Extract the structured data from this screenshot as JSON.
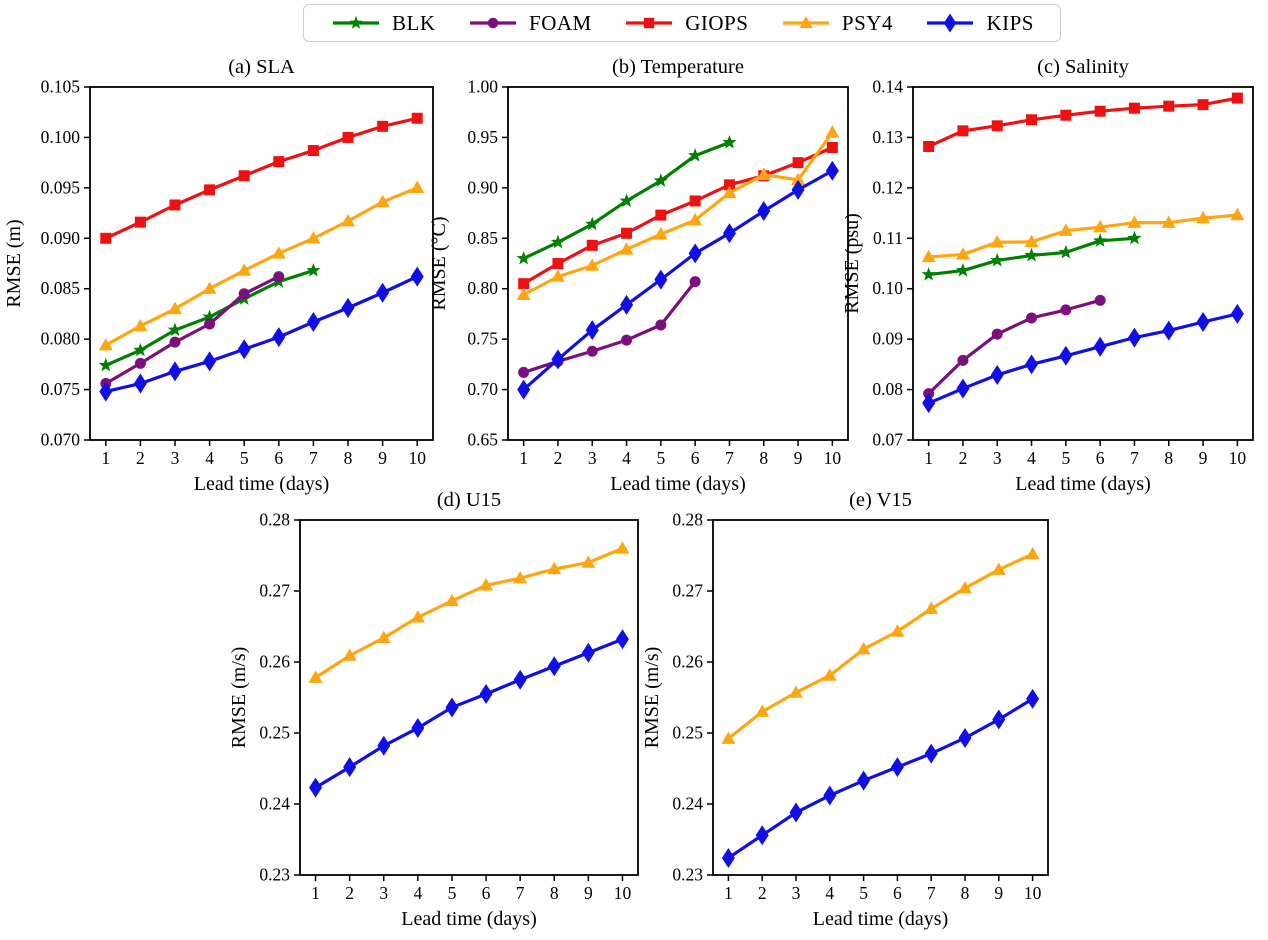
{
  "figure": {
    "legend": {
      "position": "top-center",
      "items": [
        {
          "label": "BLK",
          "color": "#008000",
          "marker": "star-icon"
        },
        {
          "label": "FOAM",
          "color": "#7b0f7b",
          "marker": "circle-icon"
        },
        {
          "label": "GIOPS",
          "color": "#ee1111",
          "marker": "square-icon"
        },
        {
          "label": "PSY4",
          "color": "#ffa512",
          "marker": "triangle-icon"
        },
        {
          "label": "KIPS",
          "color": "#0f0fe6",
          "marker": "diamond-icon"
        }
      ]
    }
  },
  "chart_data": [
    {
      "id": "sla",
      "type": "line",
      "title": "(a) SLA",
      "xlabel": "Lead time (days)",
      "ylabel": "RMSE (m)",
      "x": [
        1,
        2,
        3,
        4,
        5,
        6,
        7,
        8,
        9,
        10
      ],
      "xtick_labels": [
        "1",
        "2",
        "3",
        "4",
        "5",
        "6",
        "7",
        "8",
        "9",
        "10"
      ],
      "ylim": [
        0.07,
        0.105
      ],
      "ytick_labels": [
        "0.070",
        "0.075",
        "0.080",
        "0.085",
        "0.090",
        "0.095",
        "0.100",
        "0.105"
      ],
      "grid": false,
      "series": [
        {
          "name": "BLK",
          "values": [
            0.0774,
            0.0789,
            0.0809,
            0.0822,
            0.084,
            0.0857,
            0.0868
          ]
        },
        {
          "name": "FOAM",
          "values": [
            0.0756,
            0.0776,
            0.0797,
            0.0815,
            0.0845,
            0.0862
          ]
        },
        {
          "name": "GIOPS",
          "values": [
            0.09,
            0.0916,
            0.0933,
            0.0948,
            0.0962,
            0.0976,
            0.0987,
            0.1,
            0.1011,
            0.1019
          ]
        },
        {
          "name": "PSY4",
          "values": [
            0.0794,
            0.0813,
            0.083,
            0.085,
            0.0868,
            0.0885,
            0.09,
            0.0917,
            0.0936,
            0.095
          ]
        },
        {
          "name": "KIPS",
          "values": [
            0.0748,
            0.0756,
            0.0768,
            0.0778,
            0.079,
            0.0802,
            0.0817,
            0.0831,
            0.0846,
            0.0862
          ]
        }
      ]
    },
    {
      "id": "temperature",
      "type": "line",
      "title": "(b) Temperature",
      "xlabel": "Lead time (days)",
      "ylabel": "RMSE (°C)",
      "x": [
        1,
        2,
        3,
        4,
        5,
        6,
        7,
        8,
        9,
        10
      ],
      "xtick_labels": [
        "1",
        "2",
        "3",
        "4",
        "5",
        "6",
        "7",
        "8",
        "9",
        "10"
      ],
      "ylim": [
        0.65,
        1.0
      ],
      "ytick_labels": [
        "0.65",
        "0.70",
        "0.75",
        "0.80",
        "0.85",
        "0.90",
        "0.95",
        "1.00"
      ],
      "grid": false,
      "series": [
        {
          "name": "BLK",
          "values": [
            0.83,
            0.846,
            0.864,
            0.887,
            0.907,
            0.932,
            0.945
          ]
        },
        {
          "name": "FOAM",
          "values": [
            0.717,
            0.728,
            0.738,
            0.749,
            0.764,
            0.807
          ]
        },
        {
          "name": "GIOPS",
          "values": [
            0.805,
            0.825,
            0.843,
            0.855,
            0.873,
            0.887,
            0.903,
            0.912,
            0.925,
            0.94
          ]
        },
        {
          "name": "PSY4",
          "values": [
            0.794,
            0.812,
            0.823,
            0.839,
            0.854,
            0.868,
            0.895,
            0.913,
            0.908,
            0.955
          ]
        },
        {
          "name": "KIPS",
          "values": [
            0.7,
            0.73,
            0.759,
            0.784,
            0.809,
            0.835,
            0.855,
            0.877,
            0.898,
            0.917
          ]
        }
      ]
    },
    {
      "id": "salinity",
      "type": "line",
      "title": "(c) Salinity",
      "xlabel": "Lead time (days)",
      "ylabel": "RMSE (psu)",
      "x": [
        1,
        2,
        3,
        4,
        5,
        6,
        7,
        8,
        9,
        10
      ],
      "xtick_labels": [
        "1",
        "2",
        "3",
        "4",
        "5",
        "6",
        "7",
        "8",
        "9",
        "10"
      ],
      "ylim": [
        0.07,
        0.14
      ],
      "ytick_labels": [
        "0.07",
        "0.08",
        "0.09",
        "0.10",
        "0.11",
        "0.12",
        "0.13",
        "0.14"
      ],
      "grid": false,
      "series": [
        {
          "name": "BLK",
          "values": [
            0.1028,
            0.1036,
            0.1056,
            0.1066,
            0.1072,
            0.1095,
            0.11
          ]
        },
        {
          "name": "FOAM",
          "values": [
            0.0792,
            0.0858,
            0.091,
            0.0942,
            0.0958,
            0.0977
          ]
        },
        {
          "name": "GIOPS",
          "values": [
            0.1282,
            0.1313,
            0.1323,
            0.1335,
            0.1344,
            0.1352,
            0.1358,
            0.1362,
            0.1365,
            0.1378
          ]
        },
        {
          "name": "PSY4",
          "values": [
            0.1063,
            0.1068,
            0.1092,
            0.1093,
            0.1115,
            0.1122,
            0.1131,
            0.1131,
            0.114,
            0.1146
          ]
        },
        {
          "name": "KIPS",
          "values": [
            0.0773,
            0.0802,
            0.0829,
            0.085,
            0.0867,
            0.0885,
            0.0903,
            0.0917,
            0.0934,
            0.095
          ]
        }
      ]
    },
    {
      "id": "u15",
      "type": "line",
      "title": "(d) U15",
      "xlabel": "Lead time (days)",
      "ylabel": "RMSE (m/s)",
      "x": [
        1,
        2,
        3,
        4,
        5,
        6,
        7,
        8,
        9,
        10
      ],
      "xtick_labels": [
        "1",
        "2",
        "3",
        "4",
        "5",
        "6",
        "7",
        "8",
        "9",
        "10"
      ],
      "ylim": [
        0.23,
        0.28
      ],
      "ytick_labels": [
        "0.23",
        "0.24",
        "0.25",
        "0.26",
        "0.27",
        "0.28"
      ],
      "grid": false,
      "series": [
        {
          "name": "PSY4",
          "values": [
            0.2578,
            0.2609,
            0.2634,
            0.2663,
            0.2686,
            0.2708,
            0.2718,
            0.2731,
            0.274,
            0.276
          ]
        },
        {
          "name": "KIPS",
          "values": [
            0.2423,
            0.2452,
            0.2482,
            0.2507,
            0.2536,
            0.2555,
            0.2575,
            0.2594,
            0.2613,
            0.2632
          ]
        }
      ]
    },
    {
      "id": "v15",
      "type": "line",
      "title": "(e) V15",
      "xlabel": "Lead time (days)",
      "ylabel": "RMSE (m/s)",
      "x": [
        1,
        2,
        3,
        4,
        5,
        6,
        7,
        8,
        9,
        10
      ],
      "xtick_labels": [
        "1",
        "2",
        "3",
        "4",
        "5",
        "6",
        "7",
        "8",
        "9",
        "10"
      ],
      "ylim": [
        0.23,
        0.28
      ],
      "ytick_labels": [
        "0.23",
        "0.24",
        "0.25",
        "0.26",
        "0.27",
        "0.28"
      ],
      "grid": false,
      "series": [
        {
          "name": "PSY4",
          "values": [
            0.2492,
            0.253,
            0.2557,
            0.2581,
            0.2618,
            0.2643,
            0.2675,
            0.2704,
            0.273,
            0.2752
          ]
        },
        {
          "name": "KIPS",
          "values": [
            0.2324,
            0.2356,
            0.2388,
            0.2412,
            0.2433,
            0.2452,
            0.2471,
            0.2493,
            0.2519,
            0.2548
          ]
        }
      ]
    }
  ]
}
